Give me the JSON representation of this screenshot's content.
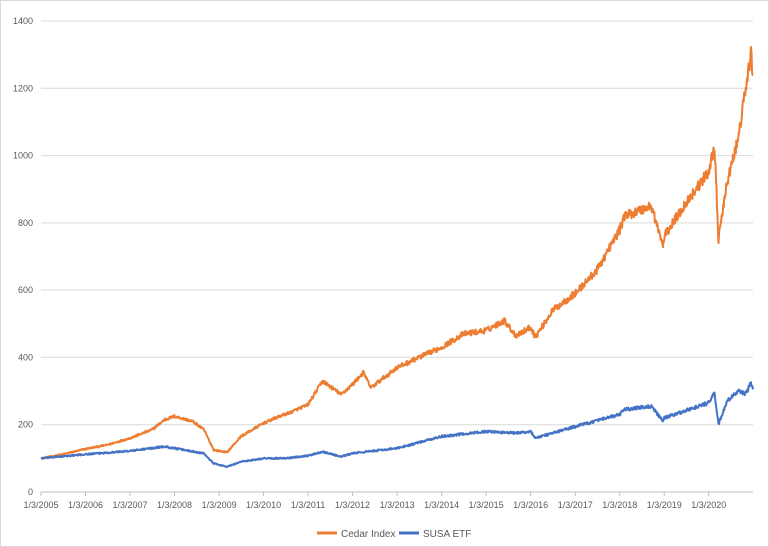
{
  "chart_data": {
    "type": "line",
    "title": "",
    "xlabel": "",
    "ylabel": "",
    "x_tick_labels": [
      "1/3/2005",
      "1/3/2006",
      "1/3/2007",
      "1/3/2008",
      "1/3/2009",
      "1/3/2010",
      "1/3/2011",
      "1/3/2012",
      "1/3/2013",
      "1/3/2014",
      "1/3/2015",
      "1/3/2016",
      "1/3/2017",
      "1/3/2018",
      "1/3/2019",
      "1/3/2020"
    ],
    "y_tick_labels": [
      "0",
      "200",
      "400",
      "600",
      "800",
      "1000",
      "1200",
      "1400"
    ],
    "ylim": [
      0,
      1400
    ],
    "xlim": [
      "2005-01-03",
      "2020-12-31"
    ],
    "grid": "horizontal",
    "legend_position": "bottom",
    "series": [
      {
        "name": "Cedar Index",
        "color": "#ED7D31",
        "x": [
          "2005-01-03",
          "2005-07-01",
          "2006-01-03",
          "2006-07-01",
          "2007-01-03",
          "2007-07-01",
          "2007-10-15",
          "2008-01-03",
          "2008-06-01",
          "2008-09-01",
          "2008-11-20",
          "2009-03-09",
          "2009-07-01",
          "2010-01-04",
          "2010-05-15",
          "2010-08-01",
          "2011-01-03",
          "2011-05-01",
          "2011-10-01",
          "2012-01-03",
          "2012-04-01",
          "2012-06-01",
          "2013-01-03",
          "2013-07-01",
          "2014-01-02",
          "2014-07-01",
          "2015-01-02",
          "2015-06-01",
          "2015-09-01",
          "2016-01-04",
          "2016-02-11",
          "2016-07-01",
          "2017-01-03",
          "2017-07-01",
          "2018-01-03",
          "2018-02-08",
          "2018-09-20",
          "2018-12-24",
          "2019-01-03",
          "2019-07-01",
          "2019-12-31",
          "2020-02-19",
          "2020-03-23",
          "2020-06-01",
          "2020-09-01",
          "2020-11-01",
          "2020-12-15",
          "2020-12-31"
        ],
        "values": [
          100,
          112,
          128,
          140,
          160,
          185,
          215,
          225,
          210,
          185,
          125,
          118,
          165,
          205,
          225,
          235,
          260,
          330,
          290,
          320,
          355,
          310,
          370,
          400,
          430,
          470,
          480,
          510,
          465,
          490,
          460,
          540,
          590,
          660,
          780,
          820,
          850,
          730,
          760,
          860,
          950,
          1030,
          750,
          920,
          1050,
          1200,
          1300,
          1240
        ]
      },
      {
        "name": "SUSA ETF",
        "color": "#4472C4",
        "x": [
          "2005-01-03",
          "2006-01-03",
          "2007-01-03",
          "2007-10-15",
          "2008-01-03",
          "2008-09-01",
          "2008-11-20",
          "2009-03-09",
          "2009-07-01",
          "2010-01-04",
          "2010-07-01",
          "2011-01-03",
          "2011-05-01",
          "2011-10-01",
          "2012-01-03",
          "2013-01-03",
          "2014-01-02",
          "2015-01-02",
          "2015-09-01",
          "2016-01-04",
          "2016-02-11",
          "2017-01-03",
          "2018-01-03",
          "2018-02-08",
          "2018-09-20",
          "2018-12-24",
          "2019-01-03",
          "2019-12-31",
          "2020-02-19",
          "2020-03-23",
          "2020-06-01",
          "2020-09-01",
          "2020-11-01",
          "2020-12-15",
          "2020-12-31"
        ],
        "values": [
          100,
          112,
          122,
          135,
          130,
          115,
          85,
          75,
          90,
          100,
          100,
          108,
          120,
          105,
          115,
          130,
          165,
          180,
          175,
          180,
          160,
          195,
          230,
          245,
          255,
          210,
          220,
          265,
          295,
          200,
          270,
          300,
          290,
          325,
          305
        ]
      }
    ]
  }
}
